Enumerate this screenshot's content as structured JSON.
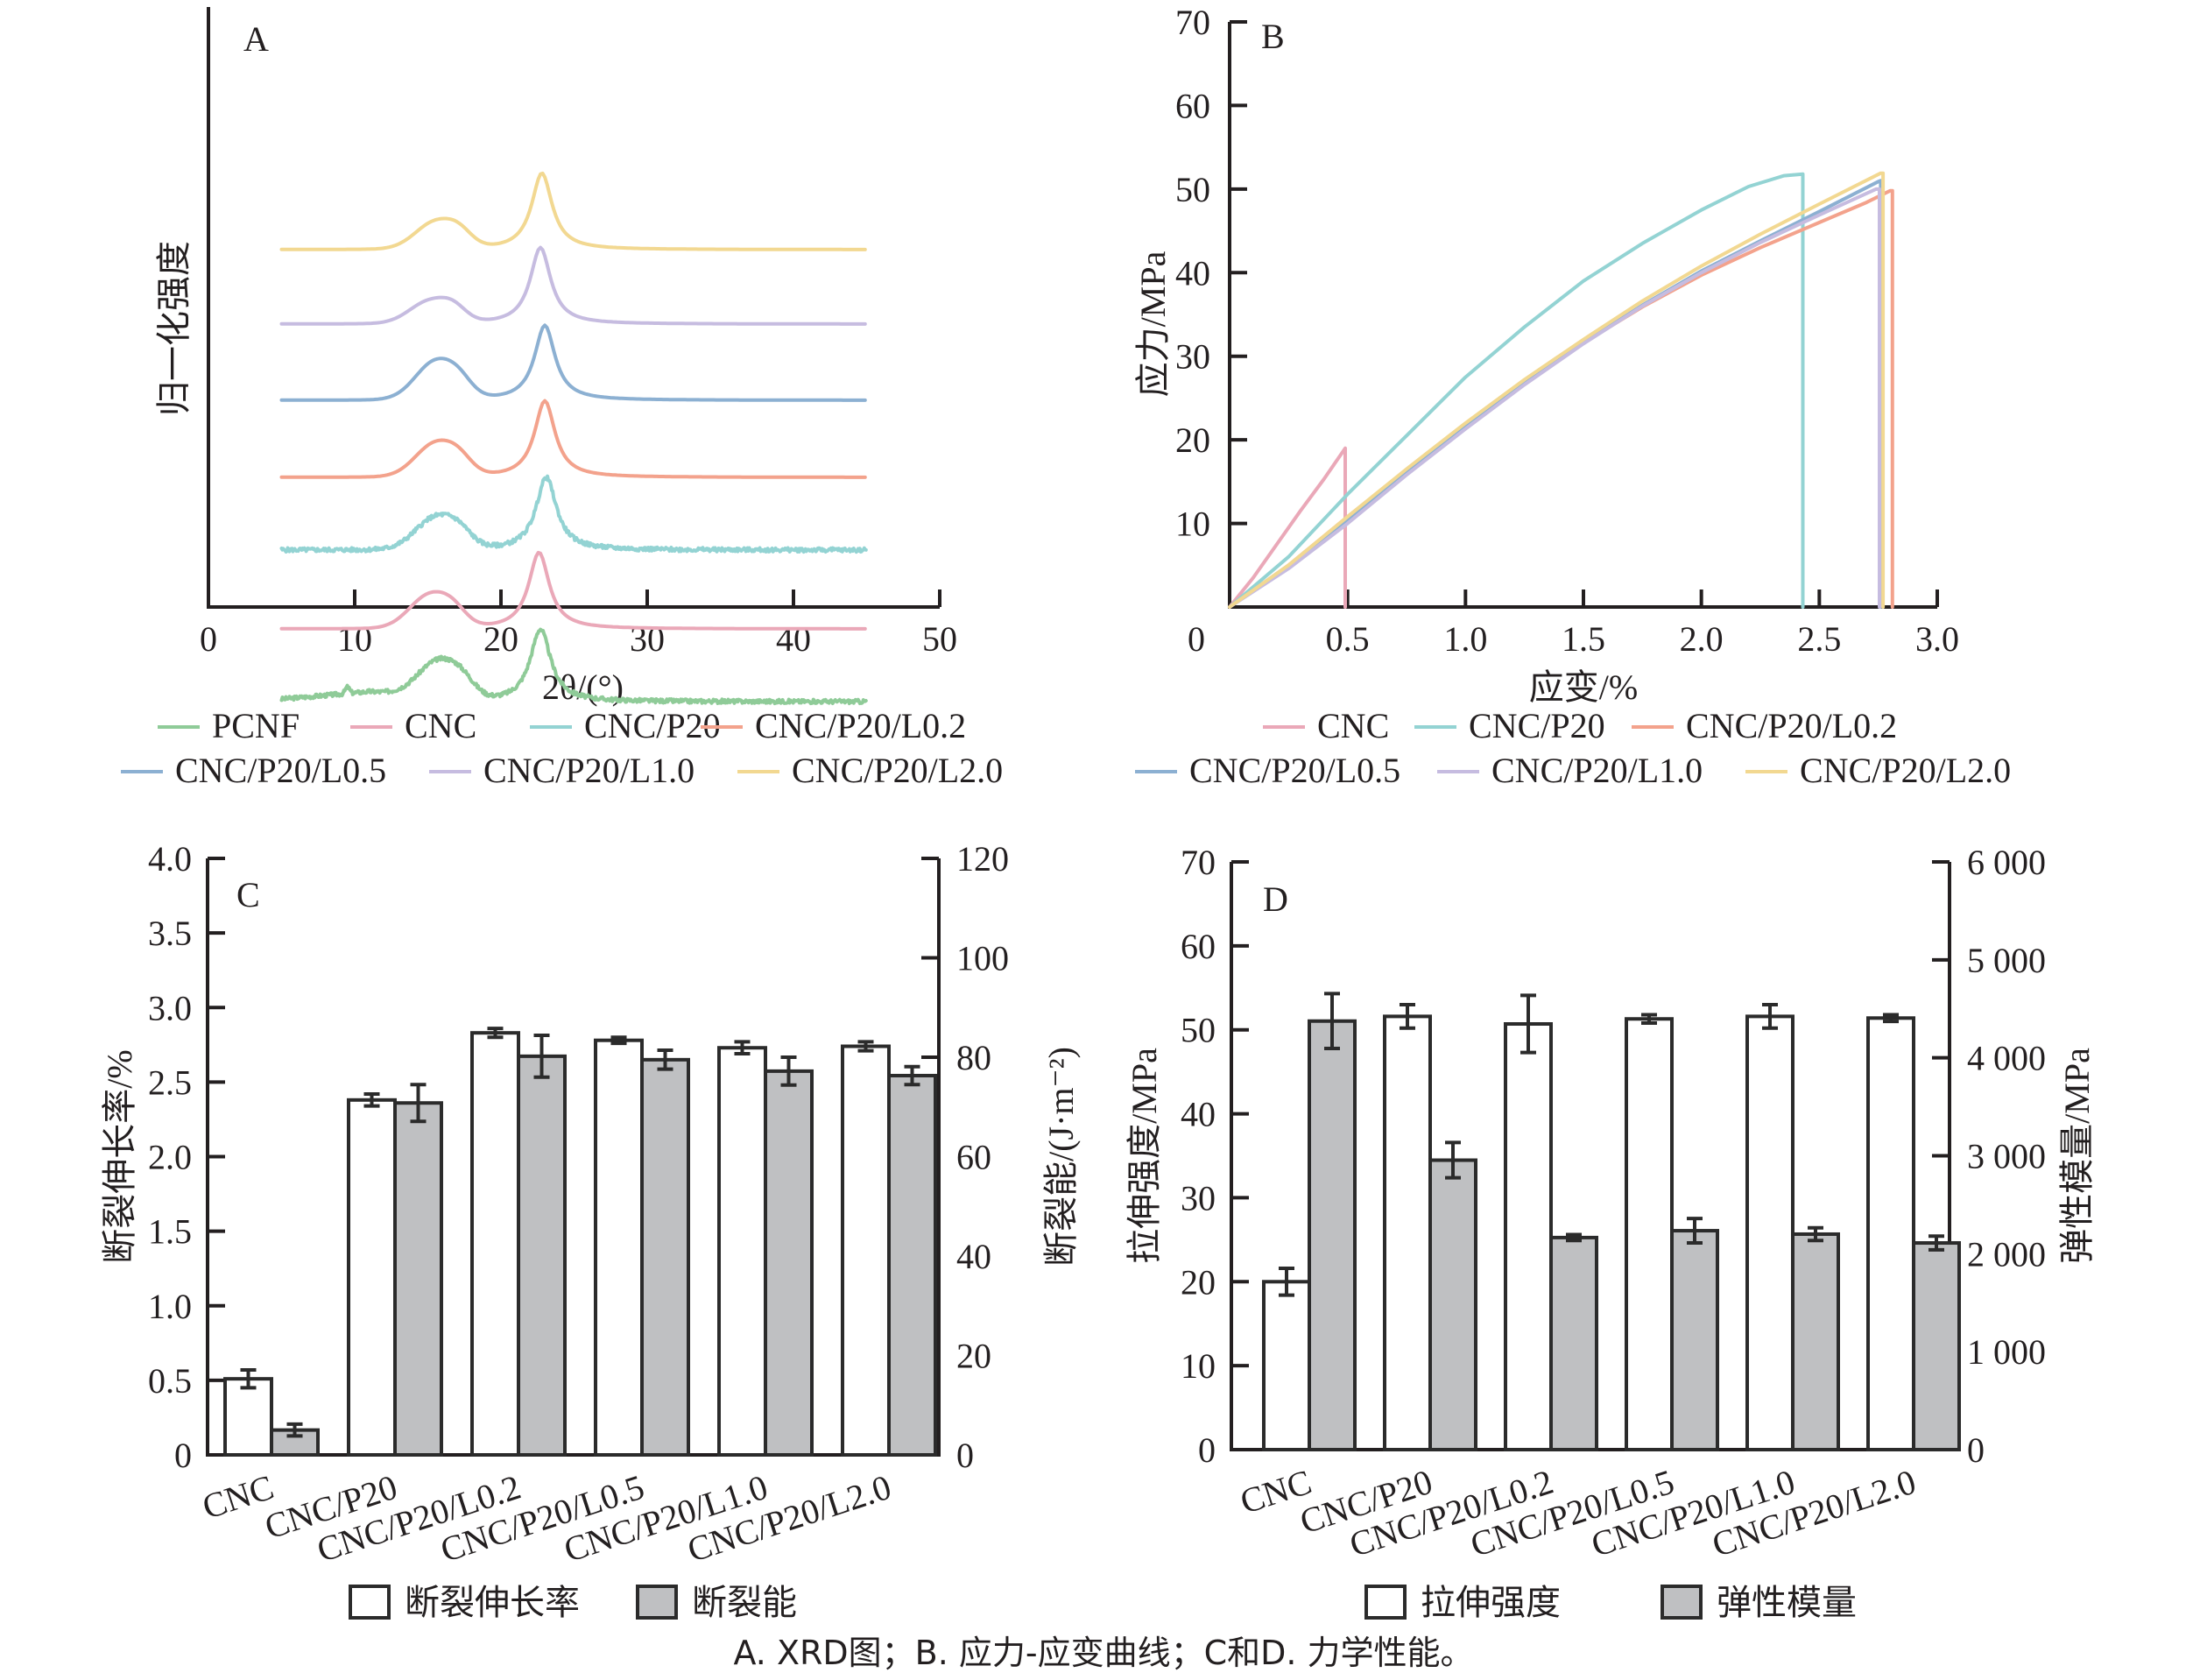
{
  "caption": "A. XRD图；B. 应力-应变曲线；C和D. 力学性能。",
  "chart_data": [
    {
      "panel": "A",
      "type": "line",
      "title": "",
      "xlabel": "2θ/(°)",
      "ylabel": "归一化强度",
      "xlim": [
        0,
        50
      ],
      "xticks": [
        "0",
        "10",
        "20",
        "30",
        "40",
        "50"
      ],
      "y_ticks_shown": false,
      "grid": false,
      "legend_position": "bottom",
      "x_range_measured": [
        5,
        45
      ],
      "series": [
        {
          "name": "PCNF",
          "color": "#8fcb98",
          "offset": 0,
          "peak_amorphous_2theta": 15.8,
          "peak_amorphous_height": 0.45,
          "peak_crystal_2theta": 22.7,
          "peak_crystal_height": 0.9,
          "minor_peak_2theta": 9.5,
          "noisy": true,
          "baseline_tilt": 0.12
        },
        {
          "name": "CNC",
          "color": "#eaa8b8",
          "offset": 1,
          "peak_amorphous_2theta": 15.2,
          "peak_amorphous_height": 0.42,
          "peak_crystal_2theta": 22.6,
          "peak_crystal_height": 0.95,
          "noisy": false
        },
        {
          "name": "CNC/P20",
          "color": "#93d3d3",
          "offset": 2,
          "peak_amorphous_2theta": 15.6,
          "peak_amorphous_height": 0.4,
          "peak_crystal_2theta": 23.1,
          "peak_crystal_height": 0.9,
          "noisy": true
        },
        {
          "name": "CNC/P20/L0.2",
          "color": "#f3a28c",
          "offset": 3,
          "peak_amorphous_2theta": 15.6,
          "peak_amorphous_height": 0.42,
          "peak_crystal_2theta": 23.0,
          "peak_crystal_height": 0.95,
          "noisy": false
        },
        {
          "name": "CNC/P20/L0.5",
          "color": "#8cb0d2",
          "offset": 4,
          "peak_amorphous_2theta": 15.6,
          "peak_amorphous_height": 0.48,
          "peak_crystal_2theta": 23.0,
          "peak_crystal_height": 0.93,
          "noisy": false
        },
        {
          "name": "CNC/P20/L1.0",
          "color": "#c6bce0",
          "offset": 5,
          "peak_amorphous_2theta": 15.2,
          "peak_amorphous_height": 0.28,
          "peak_crystal_2theta": 22.7,
          "peak_crystal_height": 0.95,
          "noisy": false
        },
        {
          "name": "CNC/P20/L2.0",
          "color": "#f2d891",
          "offset": 6,
          "peak_amorphous_2theta": 15.6,
          "peak_amorphous_height": 0.34,
          "peak_crystal_2theta": 22.8,
          "peak_crystal_height": 0.95,
          "noisy": false
        }
      ]
    },
    {
      "panel": "B",
      "type": "line",
      "title": "",
      "xlabel": "应变/%",
      "ylabel": "应力/MPa",
      "xlim": [
        0,
        3.0
      ],
      "ylim": [
        0,
        70
      ],
      "xticks": [
        "0",
        "0.5",
        "1.0",
        "1.5",
        "2.0",
        "2.5",
        "3.0"
      ],
      "yticks": [
        "10",
        "20",
        "30",
        "40",
        "50",
        "60",
        "70"
      ],
      "grid": false,
      "legend_position": "bottom",
      "series": [
        {
          "name": "CNC",
          "color": "#eaa8b8",
          "points": [
            [
              0,
              0
            ],
            [
              0.1,
              3.5
            ],
            [
              0.2,
              7.5
            ],
            [
              0.3,
              11.5
            ],
            [
              0.4,
              15.3
            ],
            [
              0.49,
              19
            ],
            [
              0.49,
              0
            ]
          ]
        },
        {
          "name": "CNC/P20",
          "color": "#93d3d3",
          "points": [
            [
              0,
              0
            ],
            [
              0.25,
              6
            ],
            [
              0.5,
              13.5
            ],
            [
              0.75,
              20.5
            ],
            [
              1.0,
              27.5
            ],
            [
              1.25,
              33.5
            ],
            [
              1.5,
              39
            ],
            [
              1.75,
              43.5
            ],
            [
              2.0,
              47.5
            ],
            [
              2.2,
              50.3
            ],
            [
              2.35,
              51.6
            ],
            [
              2.43,
              51.8
            ],
            [
              2.43,
              0
            ]
          ]
        },
        {
          "name": "CNC/P20/L0.2",
          "color": "#f3a28c",
          "points": [
            [
              0,
              0
            ],
            [
              0.25,
              5
            ],
            [
              0.5,
              10.8
            ],
            [
              0.75,
              16.4
            ],
            [
              1.0,
              21.8
            ],
            [
              1.25,
              26.9
            ],
            [
              1.5,
              31.6
            ],
            [
              1.75,
              35.9
            ],
            [
              2.0,
              39.7
            ],
            [
              2.25,
              43
            ],
            [
              2.5,
              46
            ],
            [
              2.7,
              48.4
            ],
            [
              2.8,
              49.8
            ],
            [
              2.81,
              49.8
            ],
            [
              2.81,
              0
            ]
          ]
        },
        {
          "name": "CNC/P20/L0.5",
          "color": "#8cb0d2",
          "points": [
            [
              0,
              0
            ],
            [
              0.25,
              4.8
            ],
            [
              0.5,
              10.4
            ],
            [
              0.75,
              16.1
            ],
            [
              1.0,
              21.6
            ],
            [
              1.25,
              26.8
            ],
            [
              1.5,
              31.6
            ],
            [
              1.75,
              36.1
            ],
            [
              2.0,
              40.2
            ],
            [
              2.25,
              43.8
            ],
            [
              2.5,
              47.3
            ],
            [
              2.75,
              50.9
            ],
            [
              2.76,
              51
            ],
            [
              2.76,
              0
            ]
          ]
        },
        {
          "name": "CNC/P20/L1.0",
          "color": "#c6bce0",
          "points": [
            [
              0,
              0
            ],
            [
              0.25,
              4.6
            ],
            [
              0.5,
              10
            ],
            [
              0.75,
              15.8
            ],
            [
              1.0,
              21.3
            ],
            [
              1.25,
              26.6
            ],
            [
              1.5,
              31.5
            ],
            [
              1.75,
              36
            ],
            [
              2.0,
              40
            ],
            [
              2.25,
              43.6
            ],
            [
              2.5,
              46.9
            ],
            [
              2.74,
              50
            ],
            [
              2.755,
              50
            ],
            [
              2.755,
              0
            ]
          ]
        },
        {
          "name": "CNC/P20/L2.0",
          "color": "#f2d891",
          "points": [
            [
              0,
              0
            ],
            [
              0.25,
              5
            ],
            [
              0.5,
              10.8
            ],
            [
              0.75,
              16.5
            ],
            [
              1.0,
              22
            ],
            [
              1.25,
              27.2
            ],
            [
              1.5,
              32
            ],
            [
              1.75,
              36.6
            ],
            [
              2.0,
              40.8
            ],
            [
              2.25,
              44.6
            ],
            [
              2.5,
              48.2
            ],
            [
              2.76,
              51.9
            ],
            [
              2.77,
              51.9
            ],
            [
              2.77,
              0
            ]
          ]
        }
      ]
    },
    {
      "panel": "C",
      "type": "bar",
      "title": "",
      "categories": [
        "CNC",
        "CNC/P20",
        "CNC/P20/L0.2",
        "CNC/P20/L0.5",
        "CNC/P20/L1.0",
        "CNC/P20/L2.0"
      ],
      "ylabel": "断裂伸长率/%",
      "ylabel_right": "断裂能/(J·m⁻²)",
      "ylim": [
        0,
        4.0
      ],
      "ylim_right": [
        0,
        120
      ],
      "yticks": [
        "0",
        "0.5",
        "1.0",
        "1.5",
        "2.0",
        "2.5",
        "3.0",
        "3.5",
        "4.0"
      ],
      "yticks_right": [
        "0",
        "20",
        "40",
        "60",
        "80",
        "100",
        "120"
      ],
      "grid": false,
      "legend_position": "bottom",
      "series": [
        {
          "name": "断裂伸长率",
          "axis": "left",
          "style": "open",
          "values": [
            0.51,
            2.38,
            2.83,
            2.78,
            2.73,
            2.74
          ],
          "errors": [
            0.06,
            0.04,
            0.03,
            0.02,
            0.04,
            0.03
          ]
        },
        {
          "name": "断裂能",
          "axis": "right",
          "style": "filled",
          "values": [
            5,
            70.8,
            80.2,
            79.5,
            77.2,
            76.3
          ],
          "errors": [
            1.2,
            3.7,
            4.2,
            1.9,
            2.8,
            1.8
          ]
        }
      ]
    },
    {
      "panel": "D",
      "type": "bar",
      "title": "",
      "categories": [
        "CNC",
        "CNC/P20",
        "CNC/P20/L0.2",
        "CNC/P20/L0.5",
        "CNC/P20/L1.0",
        "CNC/P20/L2.0"
      ],
      "ylabel": "拉伸强度/MPa",
      "ylabel_right": "弹性模量/MPa",
      "ylim": [
        0,
        70
      ],
      "ylim_right": [
        0,
        6000
      ],
      "yticks": [
        "0",
        "10",
        "20",
        "30",
        "40",
        "50",
        "60",
        "70"
      ],
      "yticks_right": [
        "0",
        "1 000",
        "2 000",
        "3 000",
        "4 000",
        "5 000",
        "6 000"
      ],
      "grid": false,
      "legend_position": "bottom",
      "series": [
        {
          "name": "拉伸强度",
          "axis": "left",
          "style": "open",
          "values": [
            20.0,
            51.6,
            50.7,
            51.3,
            51.6,
            51.4
          ],
          "errors": [
            1.6,
            1.4,
            3.4,
            0.5,
            1.4,
            0.4
          ]
        },
        {
          "name": "弹性模量",
          "axis": "right",
          "style": "filled",
          "values": [
            4375,
            2955,
            2165,
            2235,
            2200,
            2110
          ],
          "errors": [
            280,
            180,
            30,
            125,
            65,
            70
          ]
        }
      ]
    }
  ]
}
